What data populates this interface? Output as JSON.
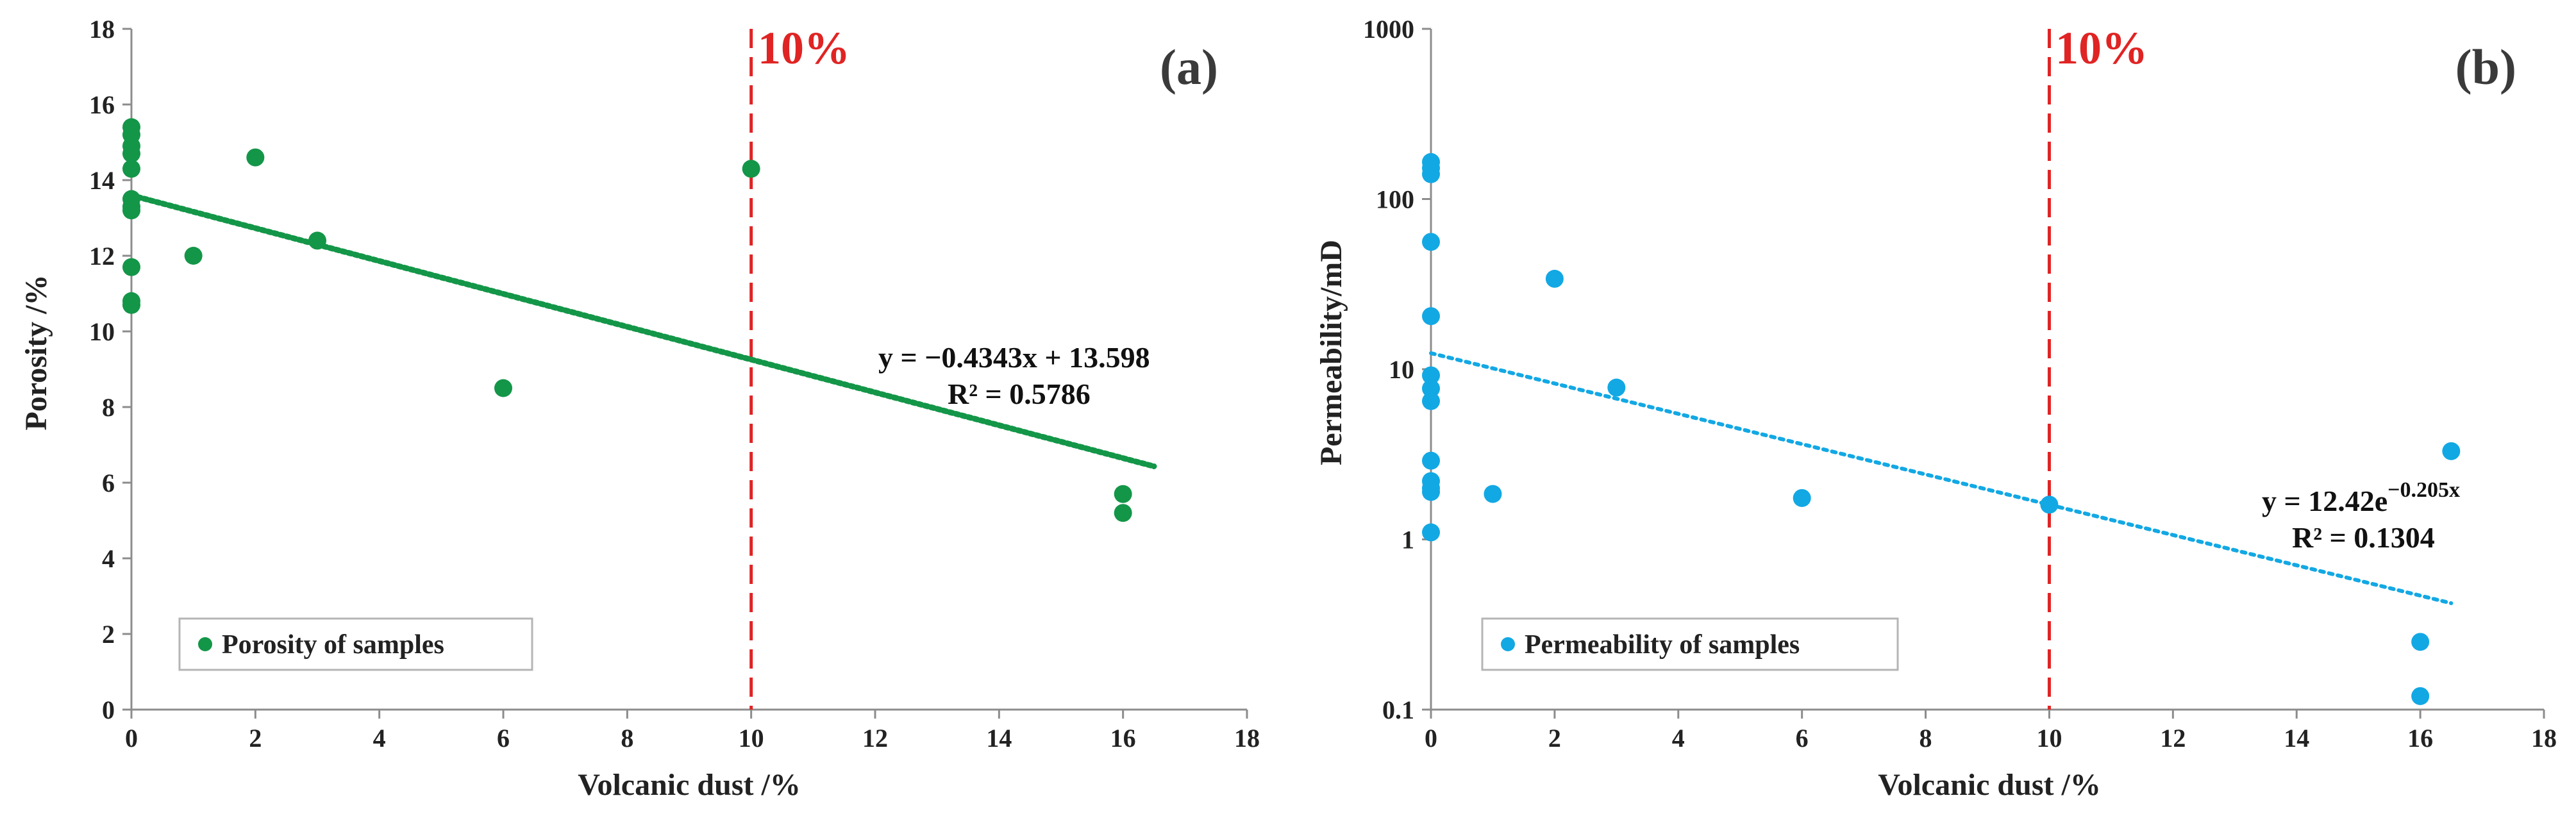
{
  "colors": {
    "series_a": "#139648",
    "series_b": "#12a8e4",
    "ref_line": "#e02424",
    "axis": "#8c8c8c"
  },
  "chart_data": [
    {
      "type": "scatter",
      "panel_label": "(a)",
      "xlabel": "Volcanic dust /%",
      "ylabel": "Porosity /%",
      "xlim": [
        0,
        18
      ],
      "ylim": [
        0,
        18
      ],
      "xticks": [
        "0",
        "2",
        "4",
        "6",
        "8",
        "10",
        "12",
        "14",
        "16",
        "18"
      ],
      "yticks": [
        "0",
        "2",
        "4",
        "6",
        "8",
        "10",
        "12",
        "14",
        "16",
        "18"
      ],
      "series": [
        {
          "name": "Porosity of samples",
          "x": [
            0,
            0,
            0,
            0,
            0,
            0,
            0,
            0,
            0,
            0,
            0,
            1,
            2,
            3,
            6,
            10,
            16,
            16
          ],
          "y": [
            15.4,
            15.2,
            14.9,
            14.7,
            14.3,
            13.5,
            13.3,
            13.2,
            11.7,
            10.8,
            10.7,
            12.0,
            14.6,
            12.4,
            8.5,
            14.3,
            5.7,
            5.2
          ]
        }
      ],
      "trendline": {
        "kind": "linear",
        "slope": -0.4343,
        "intercept": 13.598,
        "x_range": [
          0,
          16.5
        ]
      },
      "equation": "y = −0.4343x + 13.598",
      "r2": "R² = 0.5786",
      "ref_line": {
        "x": 10,
        "label": "10%"
      }
    },
    {
      "type": "scatter",
      "panel_label": "(b)",
      "xlabel": "Volcanic dust /%",
      "ylabel": "Permeability/mD",
      "xlim": [
        0,
        18
      ],
      "ylim": [
        0.1,
        1000
      ],
      "yscale": "log",
      "xticks": [
        "0",
        "2",
        "4",
        "6",
        "8",
        "10",
        "12",
        "14",
        "16",
        "18"
      ],
      "yticks": [
        "0.1",
        "1",
        "10",
        "100",
        "1000"
      ],
      "series": [
        {
          "name": "Permeability of samples",
          "x": [
            0,
            0,
            0,
            0,
            0,
            0,
            0,
            0,
            0,
            0,
            0,
            0,
            0,
            1,
            2,
            3,
            6,
            10,
            16,
            16,
            16.5
          ],
          "y": [
            165,
            152,
            140,
            56,
            20.5,
            9.2,
            7.7,
            6.5,
            2.9,
            2.2,
            2.0,
            1.9,
            1.1,
            1.85,
            34,
            7.8,
            1.75,
            1.6,
            0.25,
            0.12,
            3.3
          ]
        }
      ],
      "trendline": {
        "kind": "exponential",
        "a": 12.42,
        "b": -0.205,
        "x_range": [
          0,
          16.5
        ]
      },
      "equation_main": "y = 12.42e",
      "equation_exp": "−0.205x",
      "r2": "R² = 0.1304",
      "ref_line": {
        "x": 10,
        "label": "10%"
      }
    }
  ]
}
